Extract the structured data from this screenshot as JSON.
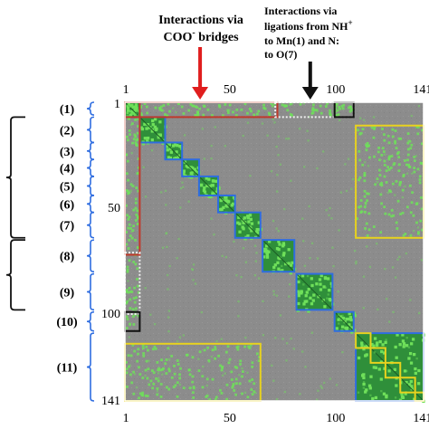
{
  "annotations": {
    "coo_line1": "Interactions via",
    "coo_line2_main": "COO",
    "coo_line2_sup": "-",
    "coo_line2_rest": " bridges",
    "nh_line1": "Interactions via",
    "nh_line2_main": "ligations from NH",
    "nh_line2_sup": "+",
    "nh_line3": "to Mn(1) and N:",
    "nh_line4": "to O(7)"
  },
  "axes": {
    "top_ticks": [
      "1",
      "50",
      "100",
      "141"
    ],
    "bottom_ticks": [
      "1",
      "50",
      "100",
      "141"
    ],
    "left_ticks": [
      "1",
      "50",
      "100",
      "141"
    ]
  },
  "groups": [
    {
      "label": "(1)",
      "start": 1,
      "end": 6
    },
    {
      "label": "(2)",
      "start": 8,
      "end": 19
    },
    {
      "label": "(3)",
      "start": 20,
      "end": 27
    },
    {
      "label": "(4)",
      "start": 28,
      "end": 35
    },
    {
      "label": "(5)",
      "start": 36,
      "end": 44
    },
    {
      "label": "(6)",
      "start": 45,
      "end": 52
    },
    {
      "label": "(7)",
      "start": 53,
      "end": 64
    },
    {
      "label": "(8)",
      "start": 66,
      "end": 80
    },
    {
      "label": "(9)",
      "start": 82,
      "end": 98
    },
    {
      "label": "(10)",
      "start": 100,
      "end": 108
    },
    {
      "label": "(11)",
      "start": 110,
      "end": 141
    }
  ],
  "diagonal_blocks": [
    {
      "start": 1,
      "end": 7,
      "color": "#2f6de0"
    },
    {
      "start": 8,
      "end": 19,
      "color": "#2f6de0"
    },
    {
      "start": 20,
      "end": 27,
      "color": "#2f6de0"
    },
    {
      "start": 28,
      "end": 35,
      "color": "#2f6de0"
    },
    {
      "start": 36,
      "end": 44,
      "color": "#2f6de0"
    },
    {
      "start": 45,
      "end": 52,
      "color": "#2f6de0"
    },
    {
      "start": 53,
      "end": 64,
      "color": "#2f6de0"
    },
    {
      "start": 66,
      "end": 80,
      "color": "#2f6de0"
    },
    {
      "start": 82,
      "end": 98,
      "color": "#2f6de0"
    },
    {
      "start": 100,
      "end": 108,
      "color": "#2f6de0"
    },
    {
      "start": 110,
      "end": 141,
      "color": "#2f6de0"
    },
    {
      "start": 110,
      "end": 116,
      "color": "#e8d21e"
    },
    {
      "start": 117,
      "end": 123,
      "color": "#e8d21e"
    },
    {
      "start": 124,
      "end": 130,
      "color": "#e8d21e"
    },
    {
      "start": 131,
      "end": 137,
      "color": "#e8d21e"
    },
    {
      "start": 138,
      "end": 141,
      "color": "#e8d21e"
    }
  ],
  "off_diagonal_boxes": [
    {
      "x0": 1,
      "x1": 72,
      "y0": 1,
      "y1": 7,
      "color": "#c0392b",
      "dashed": false
    },
    {
      "x0": 1,
      "x1": 7,
      "y0": 1,
      "y1": 72,
      "color": "#c0392b",
      "dashed": false
    },
    {
      "x0": 72,
      "x1": 108,
      "y0": 1,
      "y1": 7,
      "color": "#f0f0f0",
      "dashed": true
    },
    {
      "x0": 1,
      "x1": 7,
      "y0": 72,
      "y1": 100,
      "color": "#f0f0f0",
      "dashed": true
    },
    {
      "x0": 100,
      "x1": 108,
      "y0": 1,
      "y1": 7,
      "color": "#111111",
      "dashed": false
    },
    {
      "x0": 1,
      "x1": 7,
      "y0": 100,
      "y1": 108,
      "color": "#111111",
      "dashed": false
    },
    {
      "x0": 110,
      "x1": 141,
      "y0": 12,
      "y1": 64,
      "color": "#e8d21e",
      "dashed": false
    },
    {
      "x0": 1,
      "x1": 64,
      "y0": 115,
      "y1": 141,
      "color": "#e8d21e",
      "dashed": false
    }
  ],
  "colors": {
    "background": "#8c8c8c",
    "block_fill": "#2f8f3a",
    "dot": "#6fe05a",
    "red_arrow": "#e01e1e",
    "black_arrow": "#111111",
    "brace": "#2f6de0",
    "bracket": "#111111"
  },
  "arrows": {
    "coo_index": 36,
    "nh_index": 88
  },
  "brackets": [
    {
      "start": 8,
      "end": 64
    },
    {
      "start": 66,
      "end": 98
    }
  ]
}
